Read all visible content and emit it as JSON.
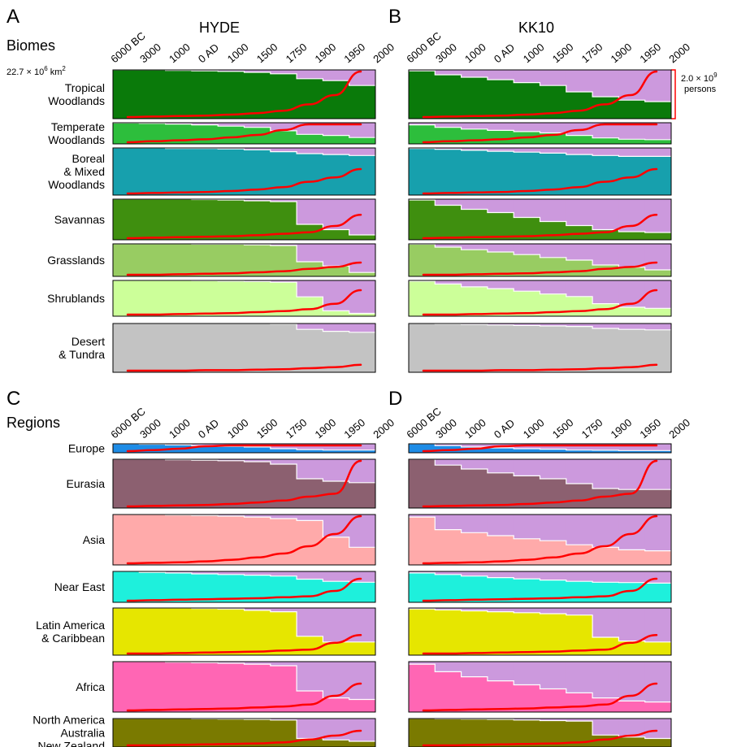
{
  "panels": {
    "A": {
      "letter": "A",
      "title": "HYDE"
    },
    "B": {
      "letter": "B",
      "title": "KK10"
    },
    "C": {
      "letter": "C",
      "title": ""
    },
    "D": {
      "letter": "D",
      "title": ""
    }
  },
  "groups": {
    "biomes": "Biomes",
    "regions": "Regions"
  },
  "ticks": [
    "6000 BC",
    "3000",
    "1000",
    "0 AD",
    "1000",
    "1500",
    "1750",
    "1900",
    "1950",
    "2000"
  ],
  "annotations": {
    "area_value": "22.7 × 10",
    "area_exp": "6",
    "area_unit": " km",
    "area_sup": "2",
    "pop_value": "2.0 × 10",
    "pop_exp": "9",
    "pop_unit": "persons"
  },
  "biomes": [
    {
      "label": [
        "Tropical",
        "Woodlands"
      ],
      "color": "#0a7a0a"
    },
    {
      "label": [
        "Temperate",
        "Woodlands"
      ],
      "color": "#2dbe3c"
    },
    {
      "label": [
        "Boreal",
        "& Mixed",
        "Woodlands"
      ],
      "color": "#17a0ad"
    },
    {
      "label": [
        "Savannas"
      ],
      "color": "#3f8f0f"
    },
    {
      "label": [
        "Grasslands"
      ],
      "color": "#98cc62"
    },
    {
      "label": [
        "Shrublands"
      ],
      "color": "#ccff99"
    },
    {
      "label": [
        "Desert",
        "& Tundra"
      ],
      "color": "#c3c3c3"
    }
  ],
  "regions": [
    {
      "label": [
        "Europe"
      ],
      "color": "#1e8ce6"
    },
    {
      "label": [
        "Eurasia"
      ],
      "color": "#8c6070"
    },
    {
      "label": [
        "Asia"
      ],
      "color": "#ffaaaa"
    },
    {
      "label": [
        "Near East"
      ],
      "color": "#1ef0dc"
    },
    {
      "label": [
        "Latin America",
        "& Caribbean"
      ],
      "color": "#e6e600"
    },
    {
      "label": [
        "Africa"
      ],
      "color": "#ff66b4"
    },
    {
      "label": [
        "North America",
        "Australia",
        "New Zealand"
      ],
      "color": "#7a7a00"
    }
  ],
  "chart_data": {
    "type": "area",
    "x": [
      "6000 BC",
      "3000",
      "1000",
      "0 AD",
      "1000",
      "1500",
      "1750",
      "1900",
      "1950",
      "2000"
    ],
    "series_colors": {
      "used_land": "#cc99dd",
      "population": "#ff0000",
      "boundary": "#ffffff"
    },
    "used_land_fraction": {
      "HYDE": {
        "Tropical Woodlands": [
          0.0,
          0.0,
          0.01,
          0.02,
          0.03,
          0.05,
          0.08,
          0.18,
          0.22,
          0.32
        ],
        "Temperate Woodlands": [
          0.01,
          0.03,
          0.06,
          0.1,
          0.16,
          0.22,
          0.38,
          0.55,
          0.6,
          0.7
        ],
        "Boreal & Mixed Woodlands": [
          0.0,
          0.0,
          0.01,
          0.01,
          0.02,
          0.04,
          0.08,
          0.12,
          0.14,
          0.16
        ],
        "Savannas": [
          0.0,
          0.0,
          0.0,
          0.01,
          0.02,
          0.04,
          0.06,
          0.62,
          0.75,
          0.88
        ],
        "Grasslands": [
          0.0,
          0.0,
          0.0,
          0.01,
          0.01,
          0.03,
          0.05,
          0.55,
          0.68,
          0.88
        ],
        "Shrublands": [
          0.0,
          0.0,
          0.0,
          0.01,
          0.02,
          0.03,
          0.05,
          0.46,
          0.85,
          0.92
        ],
        "Desert & Tundra": [
          0.0,
          0.0,
          0.0,
          0.0,
          0.0,
          0.0,
          0.01,
          0.12,
          0.16,
          0.18
        ]
      },
      "KK10": {
        "Tropical Woodlands": [
          0.02,
          0.1,
          0.15,
          0.2,
          0.26,
          0.32,
          0.45,
          0.55,
          0.62,
          0.65
        ],
        "Temperate Woodlands": [
          0.1,
          0.22,
          0.3,
          0.36,
          0.42,
          0.48,
          0.6,
          0.72,
          0.78,
          0.8
        ],
        "Boreal & Mixed Woodlands": [
          0.01,
          0.03,
          0.05,
          0.07,
          0.09,
          0.11,
          0.14,
          0.16,
          0.18,
          0.18
        ],
        "Savannas": [
          0.02,
          0.15,
          0.25,
          0.33,
          0.45,
          0.55,
          0.65,
          0.75,
          0.8,
          0.82
        ],
        "Grasslands": [
          0.01,
          0.1,
          0.18,
          0.25,
          0.33,
          0.42,
          0.5,
          0.65,
          0.72,
          0.8
        ],
        "Shrublands": [
          0.02,
          0.1,
          0.18,
          0.23,
          0.3,
          0.38,
          0.45,
          0.65,
          0.75,
          0.78
        ],
        "Desert & Tundra": [
          0.0,
          0.01,
          0.02,
          0.03,
          0.04,
          0.05,
          0.06,
          0.1,
          0.12,
          0.13
        ]
      },
      "HYDE-regions": {
        "Europe": [
          0.0,
          0.05,
          0.12,
          0.2,
          0.28,
          0.35,
          0.55,
          0.65,
          0.7,
          0.7
        ],
        "Eurasia": [
          0.0,
          0.0,
          0.01,
          0.02,
          0.03,
          0.05,
          0.1,
          0.4,
          0.45,
          0.48
        ],
        "Asia": [
          0.0,
          0.0,
          0.01,
          0.02,
          0.03,
          0.05,
          0.08,
          0.12,
          0.45,
          0.65
        ],
        "Near East": [
          0.0,
          0.03,
          0.05,
          0.08,
          0.1,
          0.12,
          0.15,
          0.25,
          0.32,
          0.35
        ],
        "Latin America & Caribbean": [
          0.0,
          0.0,
          0.0,
          0.01,
          0.02,
          0.05,
          0.08,
          0.6,
          0.72,
          0.72
        ],
        "Africa": [
          0.0,
          0.0,
          0.01,
          0.02,
          0.03,
          0.05,
          0.08,
          0.58,
          0.72,
          0.75
        ],
        "North America Australia New Zealand": [
          0.0,
          0.0,
          0.0,
          0.01,
          0.02,
          0.03,
          0.05,
          0.7,
          0.75,
          0.8
        ]
      },
      "KK10-regions": {
        "Europe": [
          0.0,
          0.2,
          0.35,
          0.45,
          0.55,
          0.6,
          0.7,
          0.72,
          0.75,
          0.75
        ],
        "Eurasia": [
          0.0,
          0.12,
          0.2,
          0.28,
          0.34,
          0.4,
          0.5,
          0.6,
          0.62,
          0.62
        ],
        "Asia": [
          0.05,
          0.3,
          0.36,
          0.42,
          0.48,
          0.52,
          0.6,
          0.65,
          0.7,
          0.72
        ],
        "Near East": [
          0.05,
          0.1,
          0.15,
          0.2,
          0.24,
          0.28,
          0.32,
          0.35,
          0.36,
          0.38
        ],
        "Latin America & Caribbean": [
          0.02,
          0.04,
          0.06,
          0.08,
          0.1,
          0.12,
          0.15,
          0.62,
          0.7,
          0.72
        ],
        "Africa": [
          0.05,
          0.2,
          0.3,
          0.38,
          0.46,
          0.54,
          0.62,
          0.72,
          0.78,
          0.8
        ],
        "North America Australia New Zealand": [
          0.0,
          0.01,
          0.02,
          0.03,
          0.05,
          0.07,
          0.09,
          0.58,
          0.65,
          0.7
        ]
      }
    },
    "population_fraction_of_scale": {
      "Tropical Woodlands": [
        0.0,
        0.01,
        0.02,
        0.03,
        0.05,
        0.08,
        0.13,
        0.26,
        0.45,
        0.95
      ],
      "Temperate Woodlands": [
        0.0,
        0.02,
        0.04,
        0.06,
        0.1,
        0.15,
        0.25,
        0.6,
        0.8,
        1.1
      ],
      "Boreal & Mixed Woodlands": [
        0.0,
        0.01,
        0.02,
        0.03,
        0.05,
        0.08,
        0.13,
        0.24,
        0.33,
        0.5
      ],
      "Savannas": [
        0.0,
        0.01,
        0.02,
        0.03,
        0.04,
        0.06,
        0.09,
        0.12,
        0.25,
        0.48
      ],
      "Grasslands": [
        0.0,
        0.0,
        0.01,
        0.02,
        0.03,
        0.05,
        0.07,
        0.12,
        0.16,
        0.25
      ],
      "Shrublands": [
        0.0,
        0.0,
        0.01,
        0.02,
        0.03,
        0.05,
        0.07,
        0.11,
        0.22,
        0.5
      ],
      "Desert & Tundra": [
        0.0,
        0.0,
        0.0,
        0.01,
        0.01,
        0.02,
        0.03,
        0.05,
        0.07,
        0.12
      ],
      "Europe": [
        0.0,
        0.02,
        0.05,
        0.1,
        0.16,
        0.25,
        0.45,
        0.7,
        0.85,
        1.0
      ],
      "Eurasia": [
        0.0,
        0.01,
        0.02,
        0.03,
        0.05,
        0.08,
        0.12,
        0.2,
        0.26,
        1.1
      ],
      "Asia": [
        0.0,
        0.01,
        0.02,
        0.04,
        0.07,
        0.12,
        0.2,
        0.35,
        0.6,
        1.1
      ],
      "Near East": [
        0.0,
        0.01,
        0.02,
        0.03,
        0.04,
        0.05,
        0.07,
        0.09,
        0.2,
        0.45
      ],
      "Latin America & Caribbean": [
        0.0,
        0.0,
        0.01,
        0.02,
        0.03,
        0.04,
        0.06,
        0.08,
        0.22,
        0.38
      ],
      "Africa": [
        0.0,
        0.01,
        0.02,
        0.03,
        0.04,
        0.06,
        0.08,
        0.12,
        0.3,
        0.55
      ],
      "North America Australia New Zealand": [
        0.0,
        0.0,
        0.01,
        0.02,
        0.03,
        0.04,
        0.06,
        0.12,
        0.2,
        0.3
      ]
    }
  }
}
